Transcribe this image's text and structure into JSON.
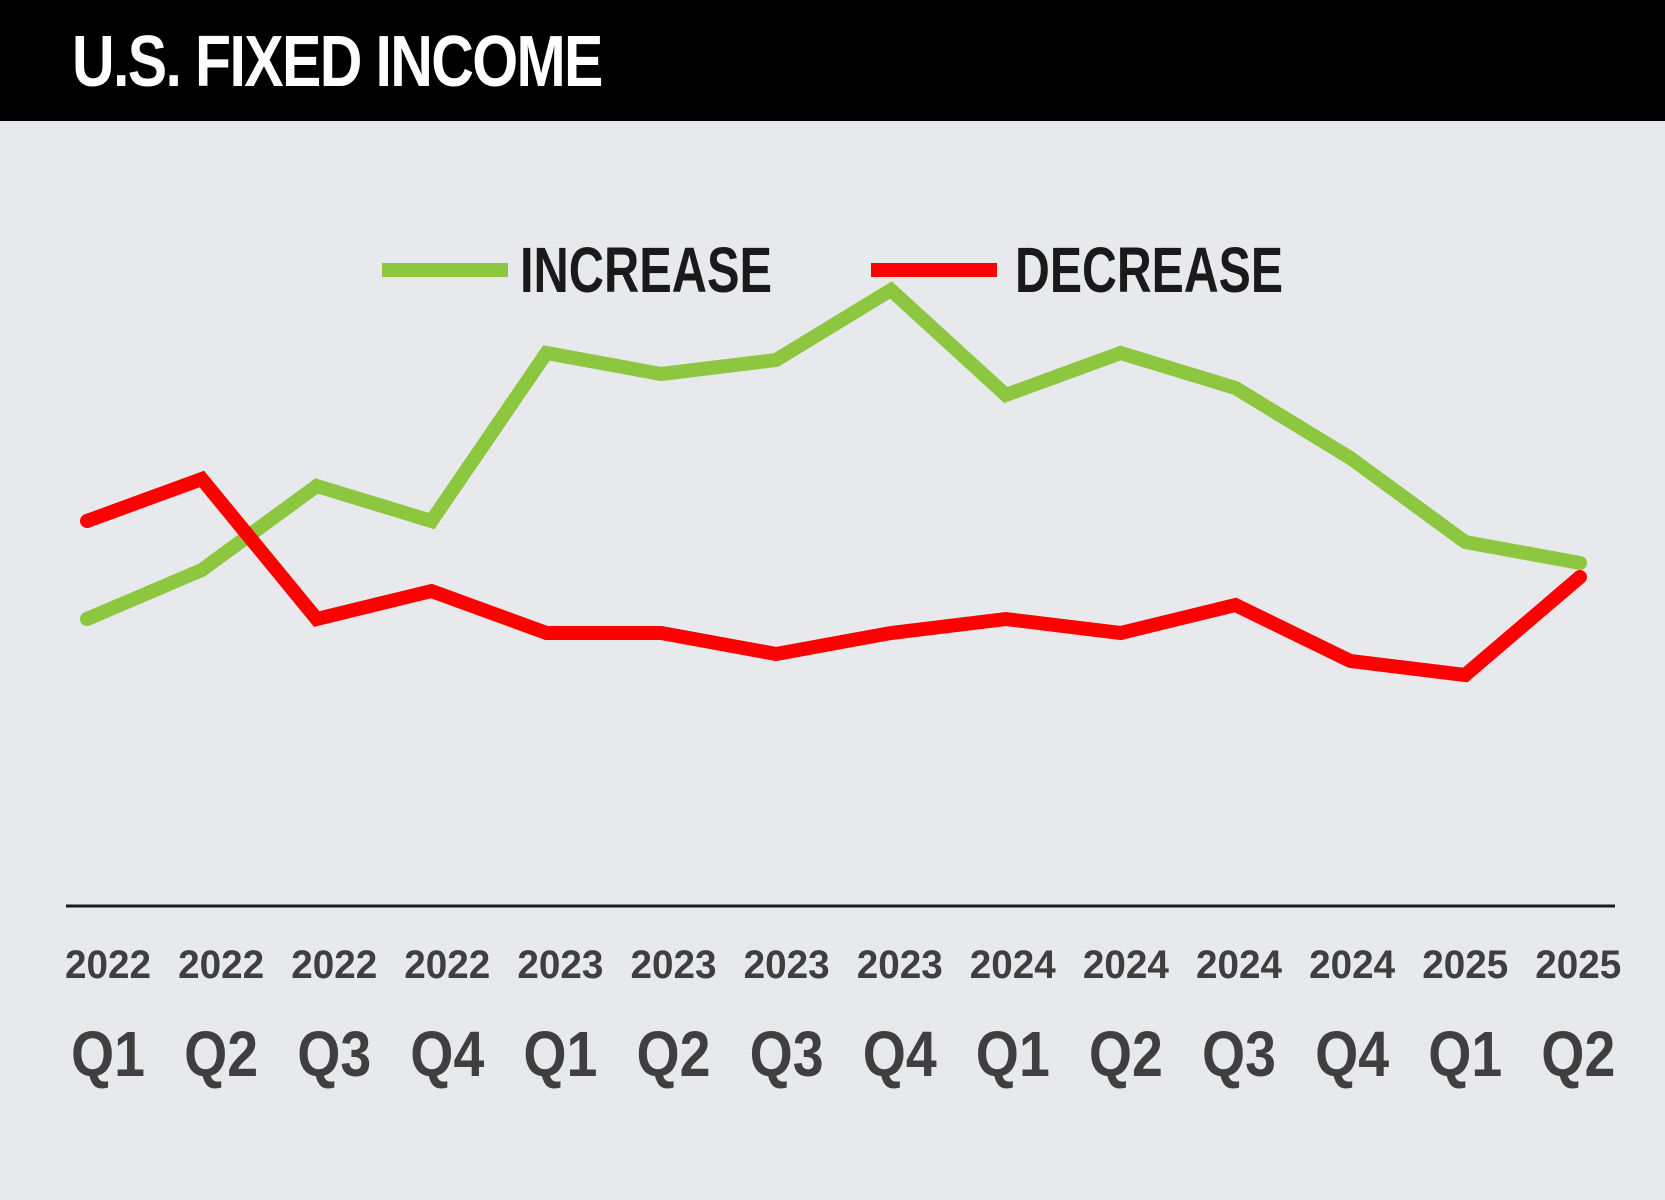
{
  "header": {
    "title": "U.S. FIXED INCOME"
  },
  "colors": {
    "background": "#e8e9ed",
    "title_bar": "#000000",
    "increase": "#8dc63f",
    "decrease": "#ff0000",
    "axis": "#1a1a1a",
    "tick_text": "#3f3f3f"
  },
  "chart_data": {
    "type": "line",
    "title": "U.S. FIXED INCOME",
    "xlabel": "",
    "ylabel": "",
    "grid": false,
    "legend_position": "top-center",
    "categories": [
      {
        "year": "2022",
        "quarter": "Q1"
      },
      {
        "year": "2022",
        "quarter": "Q2"
      },
      {
        "year": "2022",
        "quarter": "Q3"
      },
      {
        "year": "2022",
        "quarter": "Q4"
      },
      {
        "year": "2023",
        "quarter": "Q1"
      },
      {
        "year": "2023",
        "quarter": "Q2"
      },
      {
        "year": "2023",
        "quarter": "Q3"
      },
      {
        "year": "2023",
        "quarter": "Q4"
      },
      {
        "year": "2024",
        "quarter": "Q1"
      },
      {
        "year": "2024",
        "quarter": "Q2"
      },
      {
        "year": "2024",
        "quarter": "Q3"
      },
      {
        "year": "2024",
        "quarter": "Q4"
      },
      {
        "year": "2025",
        "quarter": "Q1"
      },
      {
        "year": "2025",
        "quarter": "Q2"
      }
    ],
    "ylim": [
      0,
      100
    ],
    "series": [
      {
        "name": "INCREASE",
        "color": "#8dc63f",
        "values": [
          33,
          40,
          52,
          47,
          71,
          68,
          70,
          80,
          65,
          71,
          66,
          56,
          44,
          41
        ]
      },
      {
        "name": "DECREASE",
        "color": "#ff0000",
        "values": [
          47,
          53,
          33,
          37,
          31,
          31,
          28,
          31,
          33,
          31,
          35,
          27,
          25,
          39
        ]
      }
    ]
  }
}
